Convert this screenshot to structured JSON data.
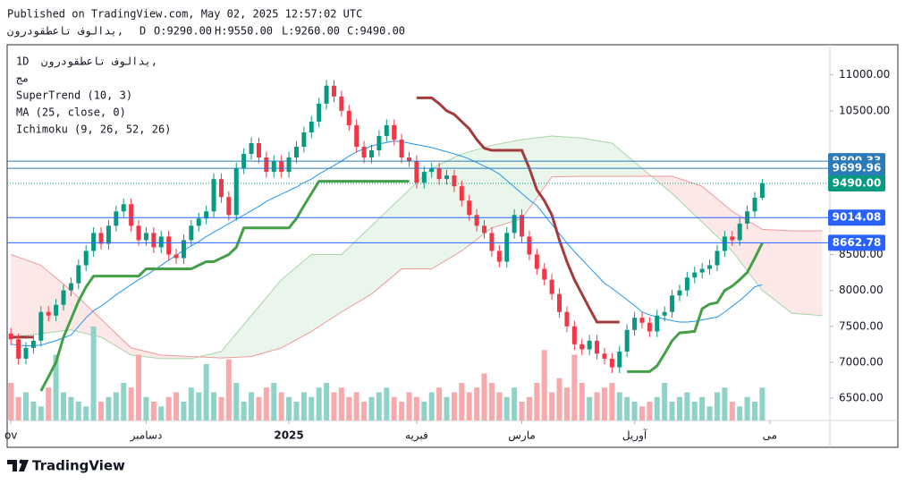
{
  "header": {
    "published": "Published on TradingView.com, May 02, 2025 12:57:02 UTC",
    "symbol": "يدالوف  تاعطقودرون,",
    "interval": "D",
    "ohlc": [
      "O:9290.00",
      "H:9550.00",
      "L:9260.00",
      "C:9490.00"
    ]
  },
  "legend": {
    "interval": "1D",
    "symbol": "يدالوف  تاعطقودرون,",
    "volume": "مج",
    "indicators": [
      "SuperTrend (10, 3)",
      "MA (25, close, 0)",
      "Ichimoku (9, 26, 52, 26)"
    ]
  },
  "chart_data": {
    "type": "candlestick",
    "open": [
      7400,
      7320,
      7050,
      7200,
      7300,
      7700,
      7650,
      7800,
      8000,
      8100,
      8350,
      8550,
      8800,
      8650,
      8900,
      9100,
      9200,
      8900,
      8700,
      8800,
      8600,
      8750,
      8500,
      8450,
      8700,
      8900,
      9000,
      9100,
      9550,
      9300,
      9050,
      9700,
      9900,
      10050,
      9850,
      9650,
      9800,
      9650,
      9850,
      10000,
      10200,
      10350,
      10600,
      10850,
      10700,
      10500,
      10300,
      10000,
      9850,
      9950,
      10150,
      10300,
      10100,
      9850,
      9800,
      9500,
      9650,
      9700,
      9550,
      9600,
      9450,
      9250,
      9050,
      8900,
      8800,
      8550,
      8400,
      8800,
      9050,
      8750,
      8500,
      8300,
      8150,
      7950,
      7700,
      7500,
      7250,
      7180,
      7300,
      7120,
      7050,
      6930,
      7150,
      7450,
      7620,
      7550,
      7430,
      7650,
      7700,
      7930,
      8000,
      8180,
      8250,
      8300,
      8350,
      8550,
      8750,
      8700,
      8930,
      9100,
      9290
    ],
    "high": [
      7480,
      7400,
      7280,
      7380,
      7780,
      7780,
      7880,
      8080,
      8180,
      8430,
      8630,
      8880,
      8880,
      8980,
      9180,
      9280,
      9280,
      8980,
      8880,
      8880,
      8830,
      8830,
      8580,
      8780,
      8980,
      9080,
      9180,
      9630,
      9630,
      9380,
      9780,
      9980,
      10130,
      10130,
      9930,
      9880,
      9880,
      9930,
      10080,
      10280,
      10430,
      10680,
      10930,
      10930,
      10780,
      10580,
      10380,
      10080,
      10030,
      10230,
      10380,
      10380,
      10180,
      9930,
      9880,
      9730,
      9780,
      9780,
      9680,
      9680,
      9530,
      9330,
      9130,
      8980,
      8880,
      8630,
      8880,
      9130,
      9130,
      8830,
      8580,
      8380,
      8230,
      8030,
      7780,
      7580,
      7330,
      7380,
      7380,
      7200,
      7130,
      7230,
      7530,
      7700,
      7700,
      7630,
      7730,
      7780,
      8010,
      8080,
      8260,
      8330,
      8380,
      8430,
      8630,
      8830,
      8830,
      9010,
      9180,
      9370,
      9550
    ],
    "low": [
      7240,
      6970,
      6970,
      7120,
      7220,
      7570,
      7570,
      7720,
      7920,
      8020,
      8270,
      8470,
      8570,
      8570,
      8820,
      9020,
      8820,
      8620,
      8620,
      8520,
      8520,
      8420,
      8370,
      8370,
      8620,
      8820,
      8920,
      9020,
      9220,
      8970,
      8970,
      9620,
      9820,
      9770,
      9570,
      9570,
      9570,
      9570,
      9770,
      9920,
      10120,
      10270,
      10520,
      10620,
      10420,
      10220,
      9920,
      9770,
      9770,
      9870,
      10070,
      10020,
      9770,
      9720,
      9420,
      9420,
      9570,
      9470,
      9470,
      9370,
      9170,
      8970,
      8820,
      8720,
      8470,
      8320,
      8320,
      8720,
      8670,
      8420,
      8220,
      8070,
      7870,
      7620,
      7420,
      7170,
      7100,
      7100,
      7040,
      6970,
      6850,
      6850,
      7070,
      7370,
      7470,
      7350,
      7350,
      7570,
      7620,
      7850,
      7920,
      8100,
      8170,
      8220,
      8270,
      8470,
      8620,
      8620,
      8850,
      9020,
      9260
    ],
    "close": [
      7320,
      7050,
      7200,
      7300,
      7700,
      7650,
      7800,
      8000,
      8100,
      8350,
      8550,
      8800,
      8650,
      8900,
      9100,
      9200,
      8900,
      8700,
      8800,
      8600,
      8750,
      8500,
      8450,
      8700,
      8900,
      9000,
      9100,
      9550,
      9300,
      9050,
      9700,
      9900,
      10050,
      9850,
      9650,
      9800,
      9650,
      9850,
      10000,
      10200,
      10350,
      10600,
      10850,
      10700,
      10500,
      10300,
      10000,
      9850,
      9950,
      10150,
      10300,
      10100,
      9850,
      9800,
      9500,
      9650,
      9700,
      9550,
      9600,
      9450,
      9250,
      9050,
      8900,
      8800,
      8550,
      8400,
      8800,
      9050,
      8750,
      8500,
      8300,
      8150,
      7950,
      7700,
      7500,
      7250,
      7180,
      7300,
      7120,
      7050,
      6930,
      7150,
      7450,
      7620,
      7550,
      7430,
      7650,
      7700,
      7930,
      8000,
      8180,
      8250,
      8300,
      8350,
      8550,
      8750,
      8700,
      8930,
      9100,
      9290,
      9490
    ],
    "volume": [
      40,
      25,
      30,
      20,
      15,
      35,
      70,
      30,
      25,
      20,
      15,
      100,
      20,
      25,
      30,
      40,
      35,
      70,
      25,
      20,
      15,
      25,
      30,
      20,
      35,
      30,
      60,
      30,
      25,
      65,
      40,
      20,
      30,
      25,
      35,
      40,
      30,
      25,
      20,
      30,
      25,
      35,
      40,
      30,
      35,
      25,
      30,
      20,
      25,
      30,
      35,
      25,
      20,
      30,
      25,
      20,
      30,
      35,
      25,
      30,
      40,
      30,
      35,
      50,
      40,
      30,
      25,
      35,
      20,
      25,
      40,
      75,
      30,
      45,
      35,
      70,
      40,
      25,
      30,
      35,
      40,
      30,
      25,
      20,
      15,
      20,
      25,
      40,
      20,
      25,
      30,
      20,
      25,
      15,
      30,
      35,
      20,
      15,
      25,
      20,
      35
    ],
    "up_color": "#089981",
    "down_color": "#f23645",
    "volume_up_color": "#8fd3c8",
    "volume_down_color": "#f7a9ab",
    "ma": {
      "color": "#2196f3",
      "values": [
        7250,
        7240,
        7230,
        7230,
        7240,
        7270,
        7300,
        7340,
        7380,
        7500,
        7620,
        7720,
        7780,
        7860,
        7940,
        8010,
        8080,
        8150,
        8210,
        8280,
        8350,
        8420,
        8490,
        8560,
        8620,
        8680,
        8750,
        8810,
        8870,
        8930,
        8990,
        9050,
        9110,
        9170,
        9240,
        9290,
        9340,
        9390,
        9440,
        9500,
        9550,
        9620,
        9680,
        9740,
        9800,
        9870,
        9930,
        9970,
        10010,
        10040,
        10060,
        10080,
        10070,
        10050,
        10030,
        10010,
        9990,
        9960,
        9930,
        9900,
        9870,
        9830,
        9780,
        9730,
        9680,
        9620,
        9530,
        9440,
        9350,
        9260,
        9180,
        9050,
        8920,
        8790,
        8660,
        8540,
        8430,
        8320,
        8210,
        8100,
        8030,
        7950,
        7870,
        7790,
        7700,
        7660,
        7630,
        7600,
        7580,
        7560,
        7560,
        7570,
        7590,
        7610,
        7630,
        7700,
        7780,
        7860,
        7950,
        8050,
        8080
      ]
    },
    "supertrend": {
      "up_color": "#43a047",
      "down_color": "#a33b3b",
      "values": [
        7350,
        7350,
        7350,
        7350,
        6600,
        6800,
        7000,
        7350,
        7600,
        7850,
        8050,
        8200,
        8200,
        8200,
        8200,
        8200,
        8200,
        8200,
        8300,
        8300,
        8300,
        8300,
        8300,
        8300,
        8300,
        8350,
        8400,
        8400,
        8450,
        8500,
        8600,
        8870,
        8870,
        8870,
        8870,
        8870,
        8870,
        8870,
        9000,
        9180,
        9350,
        9520,
        9520,
        9520,
        9520,
        9520,
        9520,
        9520,
        9520,
        9520,
        9520,
        9520,
        9520,
        9520,
        10680,
        10680,
        10680,
        10600,
        10500,
        10450,
        10350,
        10250,
        10100,
        9980,
        9950,
        9950,
        9950,
        9950,
        9950,
        9700,
        9400,
        9250,
        9050,
        8700,
        8400,
        8150,
        7950,
        7750,
        7560,
        7560,
        7560,
        7560,
        6870,
        6870,
        6870,
        6870,
        6950,
        7120,
        7300,
        7410,
        7420,
        7430,
        7745,
        7810,
        7830,
        8000,
        8060,
        8150,
        8250,
        8450,
        8660
      ]
    },
    "ichimoku": {
      "a_color": "#a5d6a7",
      "b_color": "#ef9a9a",
      "bull_fill": "#e8f5e9",
      "bear_fill": "#fde5e5",
      "x": [
        0,
        4,
        8,
        12,
        16,
        20,
        24,
        28,
        32,
        36,
        40,
        44,
        48,
        52,
        56,
        60,
        64,
        68,
        72,
        76,
        80,
        84,
        88,
        92,
        96,
        100,
        104,
        108
      ],
      "span_a": [
        7350,
        7400,
        7450,
        7350,
        7100,
        7050,
        7050,
        7150,
        7650,
        8150,
        8500,
        8500,
        8900,
        9300,
        9700,
        9900,
        10020,
        10100,
        10150,
        10120,
        10050,
        9700,
        9350,
        8950,
        8550,
        8000,
        7680,
        7650
      ],
      "span_b": [
        8500,
        8350,
        8000,
        7600,
        7200,
        7100,
        7080,
        7060,
        7080,
        7200,
        7430,
        7700,
        7950,
        8300,
        8300,
        8550,
        8870,
        9000,
        9580,
        9590,
        9590,
        9590,
        9590,
        9450,
        9100,
        8850,
        8830,
        8830
      ]
    },
    "price_lines": [
      9800.33,
      9699.96,
      {
        "value": 9490,
        "label": "9490.00"
      },
      9014.08,
      8662.78
    ],
    "price_line_colors": [
      "#2b7bba",
      "#2b7bba",
      "#089981",
      "#2962ff",
      "#2962ff"
    ],
    "xlim": [
      -0.5,
      109
    ],
    "xticks": [
      {
        "value": 0,
        "label": "ov"
      },
      {
        "value": 18,
        "label": "دسامبر"
      },
      {
        "value": 37,
        "label": "2025"
      },
      {
        "value": 54,
        "label": "فبريه"
      },
      {
        "value": 68,
        "label": "مارس"
      },
      {
        "value": 83,
        "label": "آوريل"
      },
      {
        "value": 101,
        "label": "مى"
      }
    ],
    "ylim": [
      6190,
      11420
    ],
    "yticks": [
      {
        "value": 11000,
        "label": "11000.00"
      },
      {
        "value": 10500,
        "label": "10500.00"
      },
      {
        "value": 8500,
        "label": "8500.00"
      },
      {
        "value": 8000,
        "label": "8000.00"
      },
      {
        "value": 7500,
        "label": "7500.00"
      },
      {
        "value": 7000,
        "label": "7000.00"
      },
      {
        "value": 6500,
        "label": "6500.00"
      }
    ]
  },
  "footer": {
    "brand": "TradingView"
  }
}
